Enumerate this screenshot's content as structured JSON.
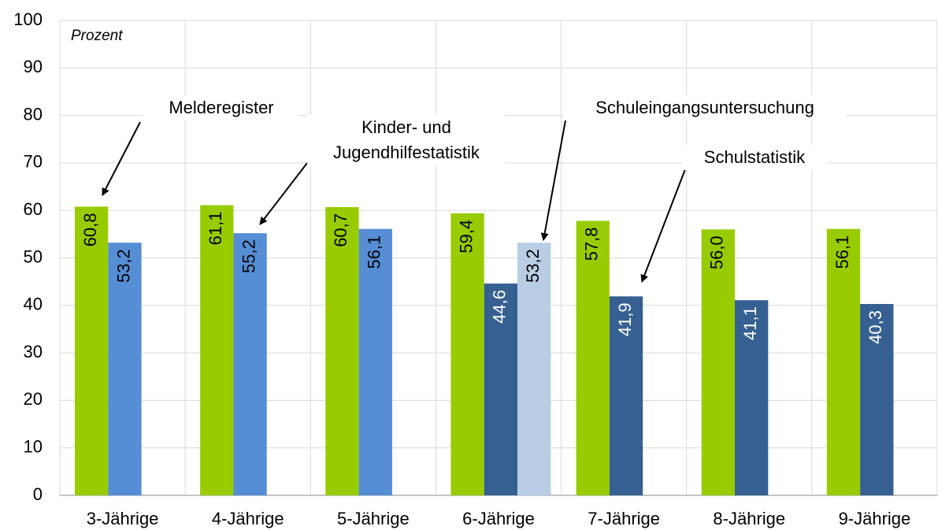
{
  "chart_data": {
    "type": "bar",
    "y_axis_label": "Prozent",
    "categories": [
      "3-Jährige",
      "4-Jährige",
      "5-Jährige",
      "6-Jährige",
      "7-Jährige",
      "8-Jährige",
      "9-Jährige"
    ],
    "series": [
      {
        "name": "Melderegister",
        "color": "#99cc00",
        "values": [
          60.8,
          61.1,
          60.7,
          59.4,
          57.8,
          56.0,
          56.1
        ],
        "value_labels": [
          "60,8",
          "61,1",
          "60,7",
          "59,4",
          "57,8",
          "56,0",
          "56,1"
        ]
      },
      {
        "name": "Kinder- und Jugendhilfestatistik",
        "color": "#558ed5",
        "values": [
          53.2,
          55.2,
          56.1,
          null,
          null,
          null,
          null
        ],
        "value_labels": [
          "53,2",
          "55,2",
          "56,1",
          null,
          null,
          null,
          null
        ]
      },
      {
        "name": "Schulstatistik",
        "color": "#376092",
        "values": [
          null,
          null,
          null,
          44.6,
          41.9,
          41.1,
          40.3
        ],
        "value_labels": [
          null,
          null,
          null,
          "44,6",
          "41,9",
          "41,1",
          "40,3"
        ]
      },
      {
        "name": "Schuleingangsuntersuchung",
        "color": "#b9cde5",
        "values": [
          null,
          null,
          null,
          53.2,
          null,
          null,
          null
        ],
        "value_labels": [
          null,
          null,
          null,
          "53,2",
          null,
          null,
          null
        ]
      }
    ],
    "ylim": [
      0,
      100
    ],
    "yticks": [
      0,
      10,
      20,
      30,
      40,
      50,
      60,
      70,
      80,
      90,
      100
    ],
    "grid": true
  }
}
